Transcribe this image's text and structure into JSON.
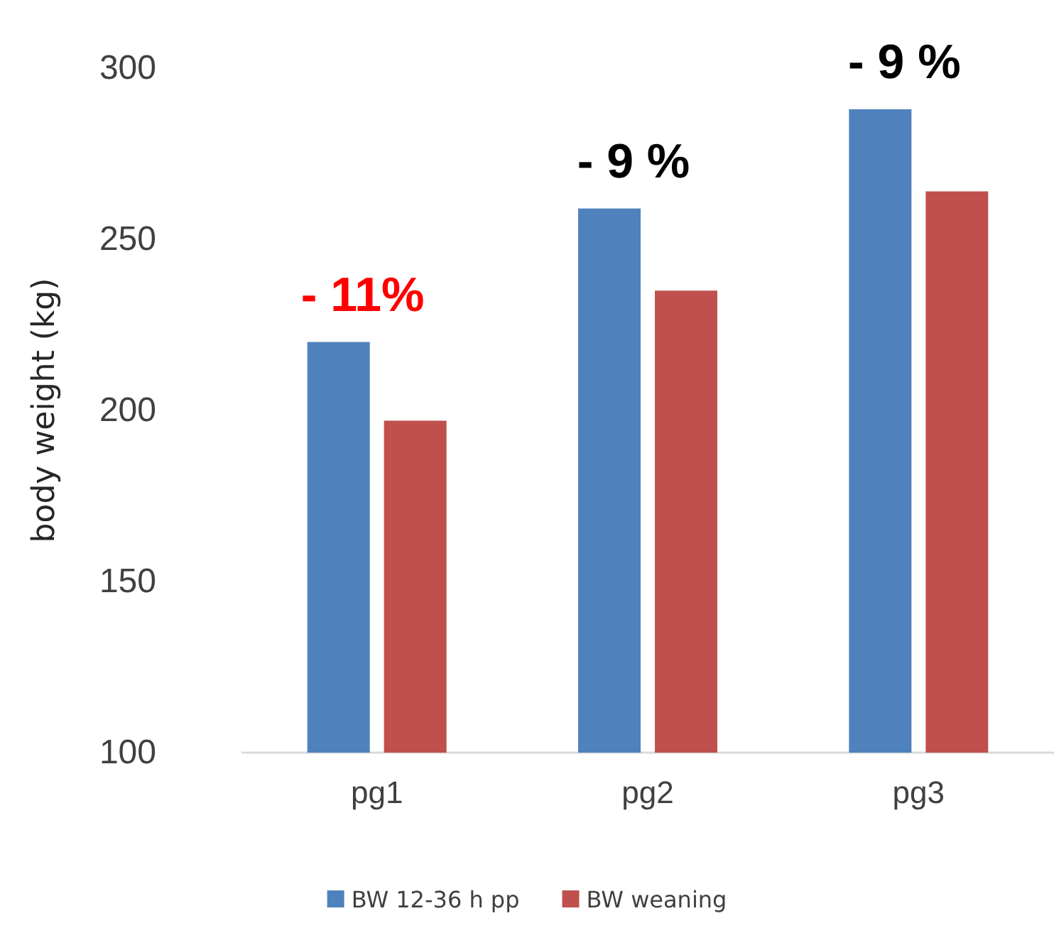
{
  "chart_data": {
    "type": "bar",
    "ylabel": "body weight (kg)",
    "categories": [
      "pg1",
      "pg2",
      "pg3"
    ],
    "series": [
      {
        "name": "BW 12-36 h pp",
        "color": "#4f81bd",
        "values": [
          220,
          259,
          288
        ]
      },
      {
        "name": "BW weaning",
        "color": "#c0504d",
        "values": [
          197,
          235,
          264
        ]
      }
    ],
    "ylim": [
      100,
      300
    ],
    "yticks": [
      100,
      150,
      200,
      250,
      300
    ],
    "grid": false,
    "legend": "bottom",
    "annotations": [
      "- 11%",
      "- 9 %",
      "- 9 %"
    ]
  }
}
